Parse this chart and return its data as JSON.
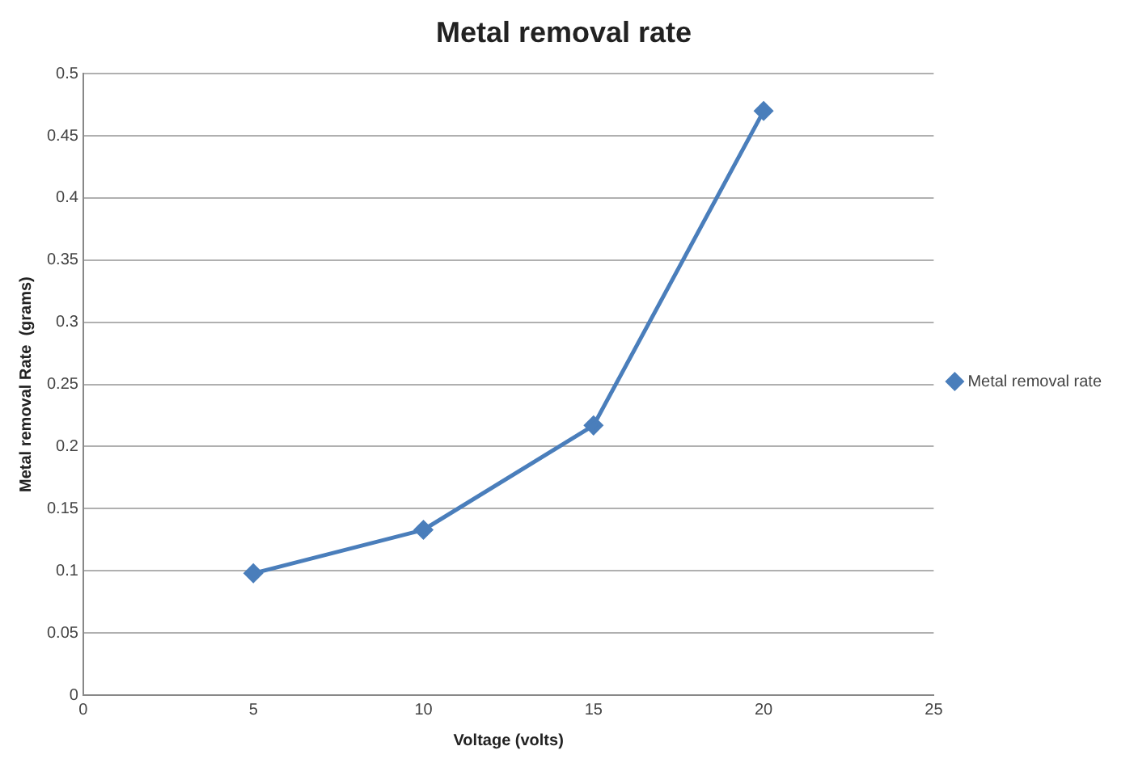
{
  "chart_data": {
    "type": "line",
    "title": "Metal removal rate",
    "xlabel": "Voltage (volts)",
    "ylabel": "Metal removal Rate  (grams)",
    "x": [
      5,
      10,
      15,
      20
    ],
    "series": [
      {
        "name": "Metal removal rate",
        "color": "#4a7ebb",
        "values": [
          0.098,
          0.133,
          0.217,
          0.47
        ]
      }
    ],
    "xlim": [
      0,
      25
    ],
    "xticks": [
      0,
      5,
      10,
      15,
      20,
      25
    ],
    "ylim": [
      0,
      0.5
    ],
    "yticks": [
      0,
      0.05,
      0.1,
      0.15,
      0.2,
      0.25,
      0.3,
      0.35,
      0.4,
      0.45,
      0.5
    ],
    "grid": "y",
    "legend": "right",
    "marker": "diamond",
    "line_style": "solid"
  }
}
